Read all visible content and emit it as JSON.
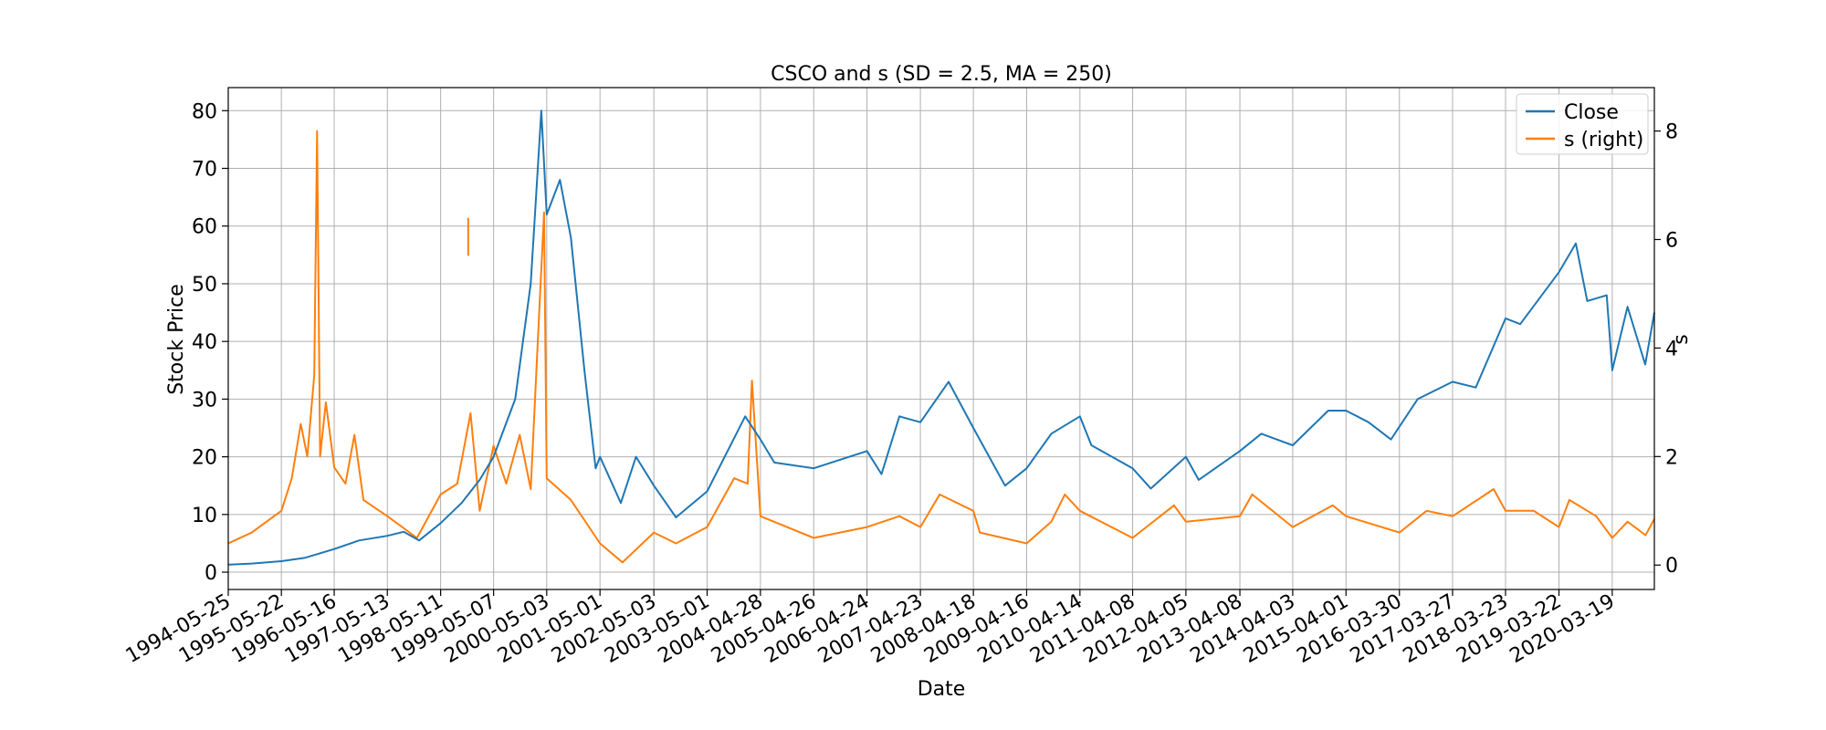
{
  "chart_data": {
    "type": "line",
    "title": "CSCO and s (SD = 2.5, MA = 250)",
    "xlabel": "Date",
    "ylabel": "Stock Price",
    "y2label": "s",
    "x_ticks": [
      "1994-05-25",
      "1995-05-22",
      "1996-05-16",
      "1997-05-13",
      "1998-05-11",
      "1999-05-07",
      "2000-05-03",
      "2001-05-01",
      "2002-05-03",
      "2003-05-01",
      "2004-04-28",
      "2005-04-26",
      "2006-04-24",
      "2007-04-23",
      "2008-04-18",
      "2009-04-16",
      "2010-04-14",
      "2011-04-08",
      "2012-04-05",
      "2013-04-08",
      "2014-04-03",
      "2015-04-01",
      "2016-03-30",
      "2017-03-27",
      "2018-03-23",
      "2019-03-22",
      "2020-03-19"
    ],
    "x_range": [
      "1994-05-25",
      "2020-12-31"
    ],
    "y_ticks": [
      0,
      10,
      20,
      30,
      40,
      50,
      60,
      70,
      80
    ],
    "ylim": [
      -3,
      84
    ],
    "y2_ticks": [
      0,
      2,
      4,
      6,
      8
    ],
    "y2lim": [
      -0.45,
      8.8
    ],
    "grid": true,
    "legend": {
      "placement": "top-right",
      "entries": [
        "Close",
        "s (right)"
      ]
    },
    "series": [
      {
        "name": "Close",
        "axis": "left",
        "color": "#1f77b4",
        "points": [
          [
            "1994-05-25",
            1.3
          ],
          [
            "1994-11-01",
            1.5
          ],
          [
            "1995-05-22",
            1.9
          ],
          [
            "1995-11-01",
            2.5
          ],
          [
            "1996-05-16",
            4.0
          ],
          [
            "1996-11-01",
            5.5
          ],
          [
            "1997-05-13",
            6.3
          ],
          [
            "1997-09-01",
            7.0
          ],
          [
            "1997-12-15",
            5.5
          ],
          [
            "1998-05-11",
            8.5
          ],
          [
            "1998-10-01",
            12.0
          ],
          [
            "1999-02-01",
            16.0
          ],
          [
            "1999-05-07",
            20.0
          ],
          [
            "1999-10-01",
            30.0
          ],
          [
            "2000-01-15",
            50.0
          ],
          [
            "2000-03-27",
            80.0
          ],
          [
            "2000-05-03",
            62.0
          ],
          [
            "2000-08-01",
            68.0
          ],
          [
            "2000-10-15",
            58.0
          ],
          [
            "2001-01-15",
            35.0
          ],
          [
            "2001-04-01",
            18.0
          ],
          [
            "2001-05-01",
            20.0
          ],
          [
            "2001-09-20",
            12.0
          ],
          [
            "2002-01-01",
            20.0
          ],
          [
            "2002-05-03",
            15.0
          ],
          [
            "2002-10-01",
            9.5
          ],
          [
            "2003-05-01",
            14.0
          ],
          [
            "2004-01-15",
            27.0
          ],
          [
            "2004-04-28",
            23.0
          ],
          [
            "2004-08-01",
            19.0
          ],
          [
            "2005-04-26",
            18.0
          ],
          [
            "2006-04-24",
            21.0
          ],
          [
            "2006-08-01",
            17.0
          ],
          [
            "2006-12-01",
            27.0
          ],
          [
            "2007-04-23",
            26.0
          ],
          [
            "2007-11-01",
            33.0
          ],
          [
            "2008-04-18",
            25.0
          ],
          [
            "2008-11-20",
            15.0
          ],
          [
            "2009-04-16",
            18.0
          ],
          [
            "2009-10-01",
            24.0
          ],
          [
            "2010-04-14",
            27.0
          ],
          [
            "2010-07-01",
            22.0
          ],
          [
            "2011-04-08",
            18.0
          ],
          [
            "2011-08-10",
            14.5
          ],
          [
            "2012-04-05",
            20.0
          ],
          [
            "2012-07-01",
            16.0
          ],
          [
            "2013-04-08",
            21.0
          ],
          [
            "2013-09-01",
            24.0
          ],
          [
            "2014-04-03",
            22.0
          ],
          [
            "2014-12-01",
            28.0
          ],
          [
            "2015-04-01",
            28.0
          ],
          [
            "2015-09-01",
            26.0
          ],
          [
            "2016-02-01",
            23.0
          ],
          [
            "2016-08-01",
            30.0
          ],
          [
            "2017-03-27",
            33.0
          ],
          [
            "2017-09-01",
            32.0
          ],
          [
            "2018-03-23",
            44.0
          ],
          [
            "2018-07-01",
            43.0
          ],
          [
            "2019-03-22",
            52.0
          ],
          [
            "2019-07-15",
            57.0
          ],
          [
            "2019-10-01",
            47.0
          ],
          [
            "2020-02-10",
            48.0
          ],
          [
            "2020-03-19",
            35.0
          ],
          [
            "2020-07-01",
            46.0
          ],
          [
            "2020-10-30",
            36.0
          ],
          [
            "2020-12-31",
            45.0
          ]
        ]
      },
      {
        "name": "s (right)",
        "axis": "right",
        "color": "#ff7f0e",
        "points": [
          [
            "1994-05-25",
            0.4
          ],
          [
            "1994-11-01",
            0.6
          ],
          [
            "1995-05-22",
            1.0
          ],
          [
            "1995-08-01",
            1.6
          ],
          [
            "1995-10-01",
            2.6
          ],
          [
            "1995-11-15",
            2.0
          ],
          [
            "1996-01-01",
            3.5
          ],
          [
            "1996-01-20",
            8.0
          ],
          [
            "1996-02-10",
            2.0
          ],
          [
            "1996-03-20",
            3.0
          ],
          [
            "1996-05-16",
            1.8
          ],
          [
            "1996-08-01",
            1.5
          ],
          [
            "1996-10-01",
            2.4
          ],
          [
            "1996-12-01",
            1.2
          ],
          [
            "1997-05-13",
            0.9
          ],
          [
            "1997-12-01",
            0.5
          ],
          [
            "1998-05-11",
            1.3
          ],
          [
            "1998-09-01",
            1.5
          ],
          [
            "1998-12-01",
            2.8
          ],
          [
            "1999-02-01",
            1.0
          ],
          [
            "1999-05-07",
            2.2
          ],
          [
            "1999-08-01",
            1.5
          ],
          [
            "1999-11-01",
            2.4
          ],
          [
            "2000-01-15",
            1.4
          ],
          [
            "2000-03-01",
            4.0
          ],
          [
            "2000-04-15",
            6.5
          ],
          [
            "2000-05-03",
            1.6
          ],
          [
            "2000-10-15",
            1.2
          ],
          [
            "2001-05-01",
            0.4
          ],
          [
            "2001-10-01",
            0.05
          ],
          [
            "2002-05-03",
            0.6
          ],
          [
            "2002-10-01",
            0.4
          ],
          [
            "2003-05-01",
            0.7
          ],
          [
            "2003-11-01",
            1.6
          ],
          [
            "2004-02-01",
            1.5
          ],
          [
            "2004-03-01",
            3.4
          ],
          [
            "2004-04-28",
            0.9
          ],
          [
            "2005-04-26",
            0.5
          ],
          [
            "2006-04-24",
            0.7
          ],
          [
            "2006-12-01",
            0.9
          ],
          [
            "2007-04-23",
            0.7
          ],
          [
            "2007-09-01",
            1.3
          ],
          [
            "2008-04-18",
            1.0
          ],
          [
            "2008-06-01",
            0.6
          ],
          [
            "2009-04-16",
            0.4
          ],
          [
            "2009-10-01",
            0.8
          ],
          [
            "2010-01-01",
            1.3
          ],
          [
            "2010-04-14",
            1.0
          ],
          [
            "2011-04-08",
            0.5
          ],
          [
            "2012-01-15",
            1.1
          ],
          [
            "2012-04-05",
            0.8
          ],
          [
            "2013-04-08",
            0.9
          ],
          [
            "2013-07-01",
            1.3
          ],
          [
            "2014-04-03",
            0.7
          ],
          [
            "2015-01-01",
            1.1
          ],
          [
            "2015-04-01",
            0.9
          ],
          [
            "2016-03-30",
            0.6
          ],
          [
            "2016-10-01",
            1.0
          ],
          [
            "2017-03-27",
            0.9
          ],
          [
            "2018-01-01",
            1.4
          ],
          [
            "2018-03-23",
            1.0
          ],
          [
            "2018-10-01",
            1.0
          ],
          [
            "2019-03-22",
            0.7
          ],
          [
            "2019-06-01",
            1.2
          ],
          [
            "2019-12-01",
            0.9
          ],
          [
            "2020-03-19",
            0.5
          ],
          [
            "2020-07-01",
            0.8
          ],
          [
            "2020-11-01",
            0.55
          ],
          [
            "2020-12-31",
            0.85
          ]
        ]
      }
    ],
    "extra_segments": [
      {
        "axis": "right",
        "color": "#ff7f0e",
        "x": "1998-11-15",
        "y_from": 5.7,
        "y_to": 6.4
      }
    ]
  }
}
